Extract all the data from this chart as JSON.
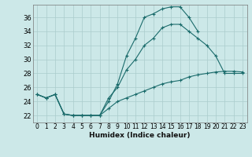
{
  "xlabel": "Humidex (Indice chaleur)",
  "background_color": "#cce8e8",
  "grid_color": "#aacccc",
  "line_color": "#1a6b6b",
  "x_ticks": [
    0,
    1,
    2,
    3,
    4,
    5,
    6,
    7,
    8,
    9,
    10,
    11,
    12,
    13,
    14,
    15,
    16,
    17,
    18,
    19,
    20,
    21,
    22,
    23
  ],
  "y_ticks": [
    22,
    24,
    26,
    28,
    30,
    32,
    34,
    36
  ],
  "ylim": [
    21.0,
    37.8
  ],
  "xlim": [
    -0.5,
    23.5
  ],
  "line1_x": [
    0,
    1,
    2,
    3,
    4,
    5,
    6,
    7,
    8,
    9,
    10,
    11,
    12,
    13,
    14,
    15,
    16,
    17,
    18
  ],
  "line1_y": [
    25,
    24.5,
    25,
    22.2,
    22,
    22,
    22,
    22,
    24,
    26.5,
    30.5,
    33,
    36,
    36.5,
    37.2,
    37.5,
    37.5,
    36,
    34
  ],
  "line2_x": [
    0,
    1,
    2,
    3,
    4,
    5,
    6,
    7,
    8,
    9,
    10,
    11,
    12,
    13,
    14,
    15,
    16,
    17,
    18,
    19,
    20,
    21,
    22,
    23
  ],
  "line2_y": [
    25,
    24.5,
    25,
    22.2,
    22,
    22,
    22,
    22,
    24.5,
    26,
    28.5,
    30,
    32,
    33,
    34.5,
    35,
    35,
    34,
    33,
    32,
    30.5,
    28,
    28,
    28
  ],
  "line3_x": [
    0,
    1,
    2,
    3,
    4,
    5,
    6,
    7,
    8,
    9,
    10,
    11,
    12,
    13,
    14,
    15,
    16,
    17,
    18,
    19,
    20,
    21,
    22,
    23
  ],
  "line3_y": [
    25,
    24.5,
    25,
    22.2,
    22,
    22,
    22,
    22,
    23,
    24,
    24.5,
    25,
    25.5,
    26,
    26.5,
    26.8,
    27,
    27.5,
    27.8,
    28,
    28.2,
    28.3,
    28.3,
    28.2
  ]
}
